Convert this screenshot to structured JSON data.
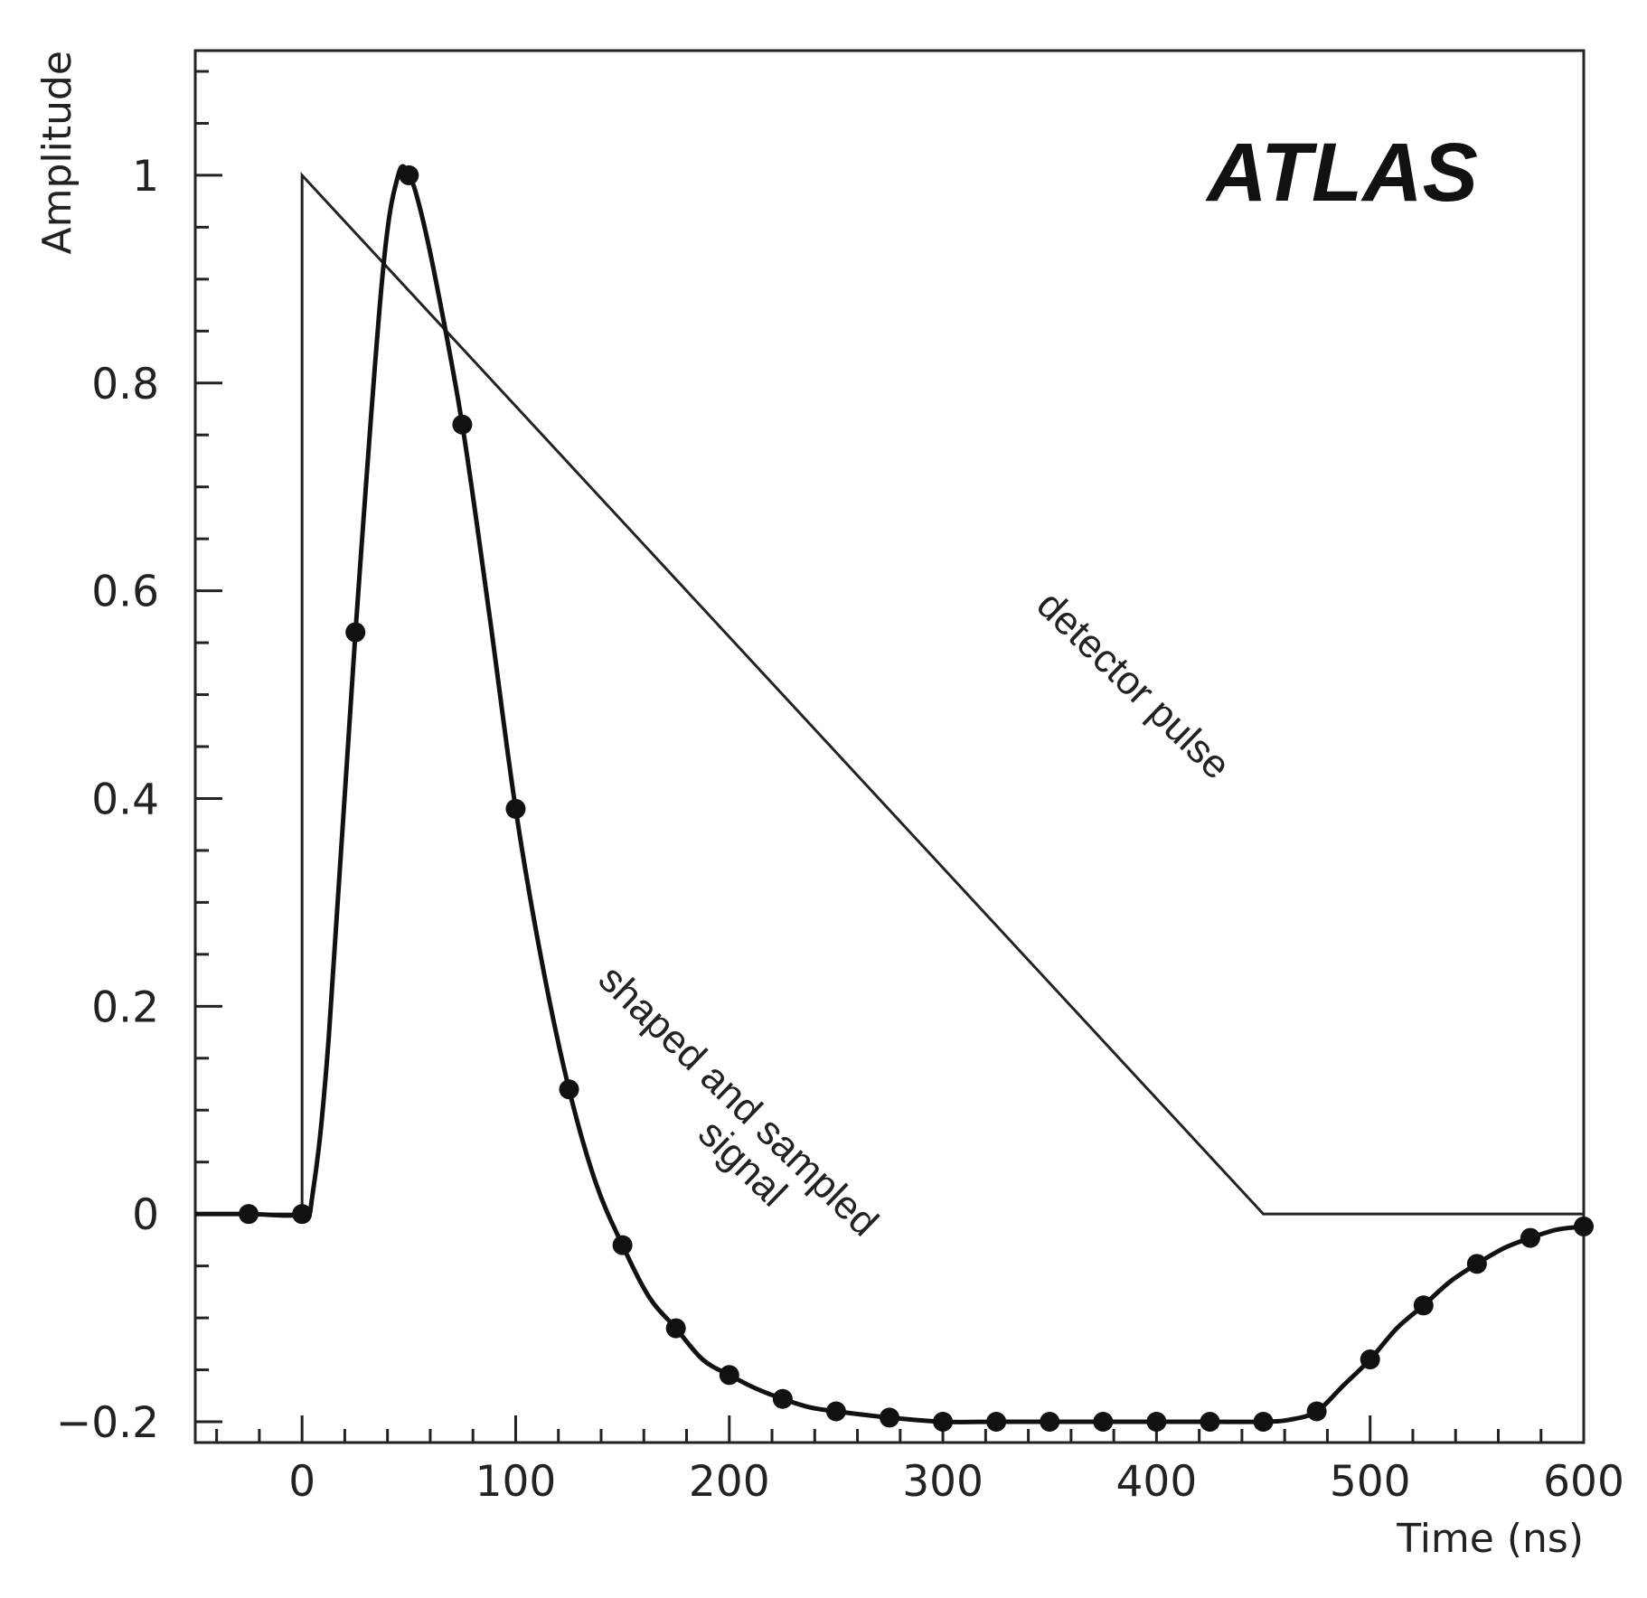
{
  "chart_data": {
    "type": "line",
    "title": "",
    "xlabel": "Time (ns)",
    "ylabel": "Amplitude",
    "xlim": [
      -50,
      600
    ],
    "ylim": [
      -0.22,
      1.12
    ],
    "x_ticks": [
      0,
      100,
      200,
      300,
      400,
      500,
      600
    ],
    "x_tick_labels": [
      "0",
      "100",
      "200",
      "300",
      "400",
      "500",
      "600"
    ],
    "y_ticks": [
      -0.2,
      0,
      0.2,
      0.4,
      0.6,
      0.8,
      1
    ],
    "y_tick_labels": [
      "−0.2",
      "0",
      "0.2",
      "0.4",
      "0.6",
      "0.8",
      "1"
    ],
    "grid": false,
    "logo_text": "ATLAS",
    "series": [
      {
        "name": "detector pulse",
        "style": "line",
        "x": [
          -50,
          0,
          0,
          450,
          600
        ],
        "y": [
          0,
          0,
          1,
          0,
          0
        ]
      },
      {
        "name": "shaped and sampled signal",
        "style": "line+markers",
        "curve_x": [
          -50,
          -25,
          0,
          5,
          12.5,
          25,
          37.5,
          45,
          50,
          55,
          62.5,
          75,
          87.5,
          100,
          112.5,
          125,
          137.5,
          150,
          162.5,
          175,
          187.5,
          200,
          212.5,
          225,
          237.5,
          250,
          275,
          300,
          325,
          350,
          375,
          400,
          425,
          450,
          462.5,
          475,
          487.5,
          500,
          512.5,
          525,
          537.5,
          550,
          562.5,
          575,
          587.5,
          600
        ],
        "curve_y": [
          0,
          0,
          0,
          0.02,
          0.17,
          0.56,
          0.9,
          1.0,
          1.0,
          0.97,
          0.9,
          0.76,
          0.58,
          0.39,
          0.24,
          0.12,
          0.03,
          -0.03,
          -0.08,
          -0.11,
          -0.14,
          -0.155,
          -0.168,
          -0.178,
          -0.186,
          -0.19,
          -0.196,
          -0.2,
          -0.2,
          -0.2,
          -0.2,
          -0.2,
          -0.2,
          -0.2,
          -0.198,
          -0.19,
          -0.165,
          -0.14,
          -0.11,
          -0.088,
          -0.065,
          -0.048,
          -0.033,
          -0.023,
          -0.015,
          -0.012
        ],
        "sample_x": [
          -25,
          0,
          25,
          50,
          75,
          100,
          125,
          150,
          175,
          200,
          225,
          250,
          275,
          300,
          325,
          350,
          375,
          400,
          425,
          450,
          475,
          500,
          525,
          550,
          575,
          600
        ],
        "sample_y": [
          0,
          0,
          0.56,
          1.0,
          0.76,
          0.39,
          0.12,
          -0.03,
          -0.11,
          -0.155,
          -0.178,
          -0.19,
          -0.196,
          -0.2,
          -0.2,
          -0.2,
          -0.2,
          -0.2,
          -0.2,
          -0.2,
          -0.19,
          -0.14,
          -0.088,
          -0.048,
          -0.023,
          -0.012
        ]
      }
    ],
    "annotations": [
      {
        "text": "detector pulse",
        "x": 385,
        "y": 0.5,
        "rotation": 44
      },
      {
        "text": "shaped and sampled",
        "x": 200,
        "y": 0.1,
        "rotation": 44
      },
      {
        "text": "signal",
        "x": 202,
        "y": 0.04,
        "rotation": 44
      }
    ]
  }
}
